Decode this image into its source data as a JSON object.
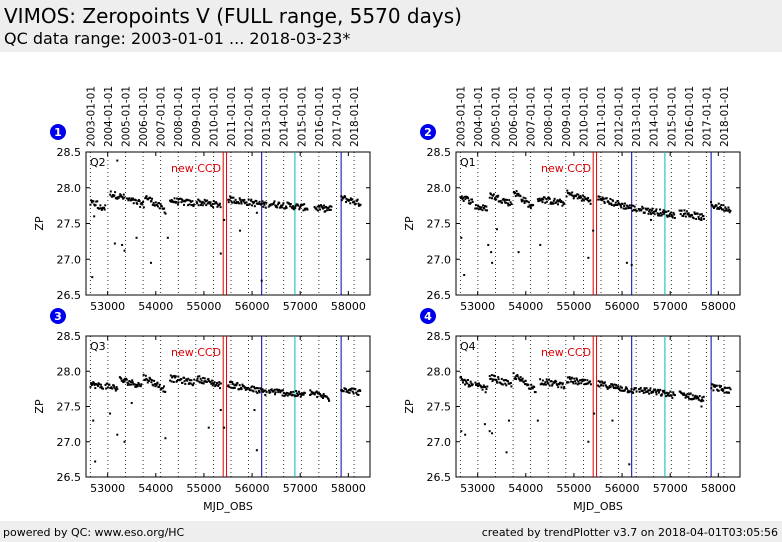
{
  "header": {
    "title": "VIMOS: Zeropoints V (FULL range, 5570 days)",
    "subtitle": "QC data range: 2003-01-01 ... 2018-03-23*"
  },
  "footer": {
    "left": "powered by QC: www.eso.org/HC",
    "right": "created by trendPlotter v3.7 on 2018-04-01T03:05:56"
  },
  "colors": {
    "points": "#000000",
    "ccd_line": "#dd0000",
    "event_blue": "#0000aa",
    "event_cyan": "#00bbbb",
    "badge": "#0000ee",
    "year_grid": "#000000"
  },
  "date_ticks": [
    "2003-01-01",
    "2004-01-01",
    "2005-01-01",
    "2006-01-01",
    "2007-01-01",
    "2008-01-01",
    "2009-01-01",
    "2010-01-01",
    "2011-01-01",
    "2012-01-01",
    "2013-01-01",
    "2014-01-01",
    "2015-01-01",
    "2016-01-01",
    "2017-01-01",
    "2018-01-01"
  ],
  "chart_data": [
    {
      "type": "scatter",
      "badge": "1",
      "label": "Q2",
      "ylabel": "ZP",
      "xlabel": "",
      "xlim": [
        52550,
        58450
      ],
      "ylim": [
        26.5,
        28.5
      ],
      "xticks": [
        "53000",
        "54000",
        "55000",
        "56000",
        "57000",
        "58000"
      ],
      "yticks": [
        "26.5",
        "27.0",
        "27.5",
        "28.0",
        "28.5"
      ],
      "annotation": "new CCD",
      "vlines_mjd": {
        "ccd": [
          55400,
          55470
        ],
        "blue": [
          56200,
          57850
        ],
        "cyan": [
          56890
        ]
      },
      "segments": [
        {
          "x0": 52640,
          "x1": 52780,
          "y0": 27.78,
          "y1": 27.78
        },
        {
          "x0": 52800,
          "x1": 52950,
          "y0": 27.72,
          "y1": 27.72
        },
        {
          "x0": 53050,
          "x1": 53350,
          "y0": 27.92,
          "y1": 27.86
        },
        {
          "x0": 53400,
          "x1": 53750,
          "y0": 27.84,
          "y1": 27.76
        },
        {
          "x0": 53780,
          "x1": 54200,
          "y0": 27.88,
          "y1": 27.68
        },
        {
          "x0": 54300,
          "x1": 54800,
          "y0": 27.82,
          "y1": 27.78
        },
        {
          "x0": 54850,
          "x1": 55350,
          "y0": 27.8,
          "y1": 27.76
        },
        {
          "x0": 55500,
          "x1": 56300,
          "y0": 27.84,
          "y1": 27.76
        },
        {
          "x0": 56350,
          "x1": 57150,
          "y0": 27.78,
          "y1": 27.72
        },
        {
          "x0": 57300,
          "x1": 57650,
          "y0": 27.72,
          "y1": 27.7
        },
        {
          "x0": 57850,
          "x1": 58250,
          "y0": 27.86,
          "y1": 27.78
        }
      ],
      "outliers": [
        [
          52680,
          26.75
        ],
        [
          53150,
          27.22
        ],
        [
          53300,
          27.2
        ],
        [
          53350,
          27.12
        ],
        [
          53600,
          27.3
        ],
        [
          53900,
          26.95
        ],
        [
          54250,
          27.3
        ],
        [
          55350,
          27.08
        ],
        [
          55420,
          27.55
        ],
        [
          55750,
          27.4
        ],
        [
          56200,
          26.7
        ],
        [
          56100,
          27.65
        ],
        [
          57500,
          27.72
        ],
        [
          53200,
          28.38
        ],
        [
          52720,
          27.6
        ]
      ]
    },
    {
      "type": "scatter",
      "badge": "2",
      "label": "Q1",
      "ylabel": "ZP",
      "xlabel": "",
      "xlim": [
        52550,
        58450
      ],
      "ylim": [
        26.5,
        28.5
      ],
      "xticks": [
        "53000",
        "54000",
        "55000",
        "56000",
        "57000",
        "58000"
      ],
      "yticks": [
        "26.5",
        "27.0",
        "27.5",
        "28.0",
        "28.5"
      ],
      "annotation": "new CCD",
      "vlines_mjd": {
        "ccd": [
          55400,
          55470
        ],
        "blue": [
          56200,
          57850
        ],
        "cyan": [
          56890
        ]
      },
      "segments": [
        {
          "x0": 52640,
          "x1": 52900,
          "y0": 27.88,
          "y1": 27.8
        },
        {
          "x0": 52950,
          "x1": 53200,
          "y0": 27.74,
          "y1": 27.7
        },
        {
          "x0": 53250,
          "x1": 53700,
          "y0": 27.9,
          "y1": 27.78
        },
        {
          "x0": 53750,
          "x1": 54150,
          "y0": 27.95,
          "y1": 27.72
        },
        {
          "x0": 54250,
          "x1": 54800,
          "y0": 27.85,
          "y1": 27.78
        },
        {
          "x0": 54850,
          "x1": 55350,
          "y0": 27.92,
          "y1": 27.82
        },
        {
          "x0": 55500,
          "x1": 56300,
          "y0": 27.85,
          "y1": 27.7
        },
        {
          "x0": 56350,
          "x1": 57100,
          "y0": 27.7,
          "y1": 27.62
        },
        {
          "x0": 57200,
          "x1": 57700,
          "y0": 27.66,
          "y1": 27.58
        },
        {
          "x0": 57850,
          "x1": 58250,
          "y0": 27.76,
          "y1": 27.7
        }
      ],
      "outliers": [
        [
          52660,
          27.3
        ],
        [
          52720,
          26.78
        ],
        [
          53220,
          27.2
        ],
        [
          53280,
          27.1
        ],
        [
          53300,
          26.95
        ],
        [
          53400,
          27.42
        ],
        [
          53850,
          27.1
        ],
        [
          54300,
          27.2
        ],
        [
          55300,
          27.02
        ],
        [
          55400,
          27.4
        ],
        [
          56100,
          26.95
        ],
        [
          56200,
          26.92
        ],
        [
          56600,
          27.55
        ],
        [
          57650,
          27.55
        ]
      ]
    },
    {
      "type": "scatter",
      "badge": "3",
      "label": "Q3",
      "ylabel": "ZP",
      "xlabel": "MJD_OBS",
      "xlim": [
        52550,
        58450
      ],
      "ylim": [
        26.5,
        28.5
      ],
      "xticks": [
        "53000",
        "54000",
        "55000",
        "56000",
        "57000",
        "58000"
      ],
      "yticks": [
        "26.5",
        "27.0",
        "27.5",
        "28.0",
        "28.5"
      ],
      "annotation": "new CCD",
      "vlines_mjd": {
        "ccd": [
          55400,
          55470
        ],
        "blue": [
          56200,
          57850
        ],
        "cyan": [
          56890
        ]
      },
      "segments": [
        {
          "x0": 52640,
          "x1": 52900,
          "y0": 27.82,
          "y1": 27.78
        },
        {
          "x0": 52950,
          "x1": 53200,
          "y0": 27.8,
          "y1": 27.76
        },
        {
          "x0": 53250,
          "x1": 53700,
          "y0": 27.88,
          "y1": 27.8
        },
        {
          "x0": 53750,
          "x1": 54200,
          "y0": 27.92,
          "y1": 27.74
        },
        {
          "x0": 54300,
          "x1": 54800,
          "y0": 27.9,
          "y1": 27.84
        },
        {
          "x0": 54850,
          "x1": 55350,
          "y0": 27.9,
          "y1": 27.8
        },
        {
          "x0": 55500,
          "x1": 56300,
          "y0": 27.82,
          "y1": 27.7
        },
        {
          "x0": 56350,
          "x1": 57100,
          "y0": 27.72,
          "y1": 27.66
        },
        {
          "x0": 57200,
          "x1": 57600,
          "y0": 27.7,
          "y1": 27.62
        },
        {
          "x0": 57850,
          "x1": 58250,
          "y0": 27.76,
          "y1": 27.7
        }
      ],
      "outliers": [
        [
          52700,
          27.3
        ],
        [
          52740,
          26.72
        ],
        [
          53050,
          27.4
        ],
        [
          53200,
          27.1
        ],
        [
          53350,
          27.0
        ],
        [
          53500,
          27.55
        ],
        [
          54200,
          27.05
        ],
        [
          55100,
          27.2
        ],
        [
          55350,
          27.45
        ],
        [
          55420,
          27.2
        ],
        [
          56100,
          26.88
        ],
        [
          56050,
          27.45
        ],
        [
          57600,
          27.58
        ]
      ]
    },
    {
      "type": "scatter",
      "badge": "4",
      "label": "Q4",
      "ylabel": "ZP",
      "xlabel": "MJD_OBS",
      "xlim": [
        52550,
        58450
      ],
      "ylim": [
        26.5,
        28.5
      ],
      "xticks": [
        "53000",
        "54000",
        "55000",
        "56000",
        "57000",
        "58000"
      ],
      "yticks": [
        "26.5",
        "27.0",
        "27.5",
        "28.0",
        "28.5"
      ],
      "annotation": "new CCD",
      "vlines_mjd": {
        "ccd": [
          55400,
          55470
        ],
        "blue": [
          56200,
          57850
        ],
        "cyan": [
          56890
        ]
      },
      "segments": [
        {
          "x0": 52640,
          "x1": 52900,
          "y0": 27.88,
          "y1": 27.8
        },
        {
          "x0": 52950,
          "x1": 53200,
          "y0": 27.8,
          "y1": 27.74
        },
        {
          "x0": 53250,
          "x1": 53700,
          "y0": 27.92,
          "y1": 27.8
        },
        {
          "x0": 53750,
          "x1": 54200,
          "y0": 27.94,
          "y1": 27.74
        },
        {
          "x0": 54300,
          "x1": 54800,
          "y0": 27.86,
          "y1": 27.8
        },
        {
          "x0": 54850,
          "x1": 55350,
          "y0": 27.88,
          "y1": 27.82
        },
        {
          "x0": 55500,
          "x1": 56300,
          "y0": 27.82,
          "y1": 27.72
        },
        {
          "x0": 56350,
          "x1": 57100,
          "y0": 27.74,
          "y1": 27.66
        },
        {
          "x0": 57200,
          "x1": 57700,
          "y0": 27.68,
          "y1": 27.6
        },
        {
          "x0": 57850,
          "x1": 58250,
          "y0": 27.78,
          "y1": 27.72
        }
      ],
      "outliers": [
        [
          52660,
          27.15
        ],
        [
          52740,
          27.1
        ],
        [
          53150,
          27.25
        ],
        [
          53250,
          27.15
        ],
        [
          53300,
          27.12
        ],
        [
          53650,
          27.3
        ],
        [
          53600,
          26.85
        ],
        [
          54250,
          27.3
        ],
        [
          55300,
          27.0
        ],
        [
          55420,
          27.4
        ],
        [
          55800,
          27.3
        ],
        [
          56150,
          26.68
        ],
        [
          57650,
          27.5
        ]
      ]
    }
  ]
}
